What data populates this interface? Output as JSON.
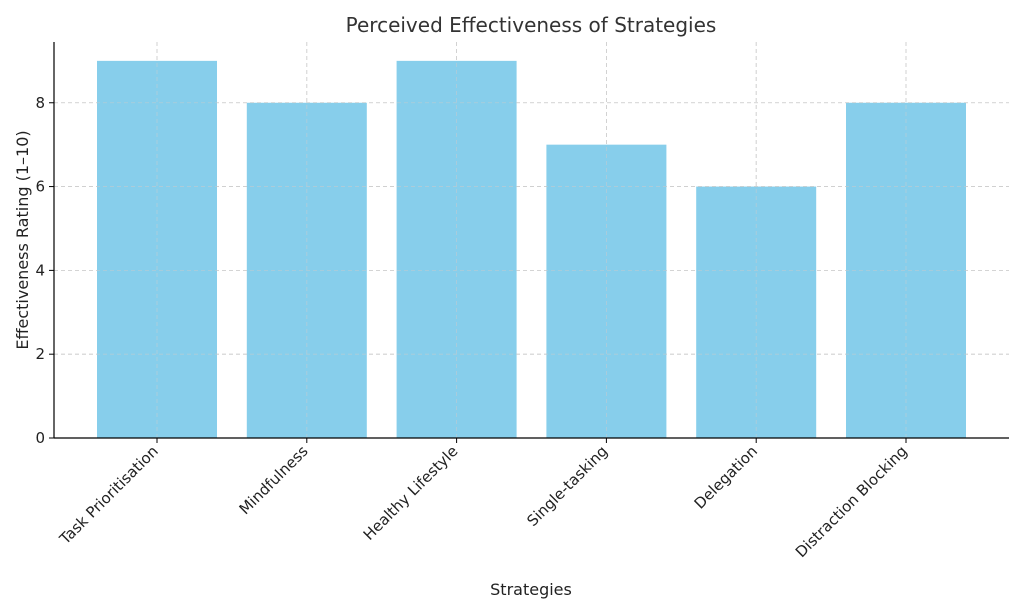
{
  "chart_data": {
    "type": "bar",
    "title": "Perceived Effectiveness of Strategies",
    "xlabel": "Strategies",
    "ylabel": "Effectiveness Rating (1–10)",
    "categories": [
      "Task Prioritisation",
      "Mindfulness",
      "Healthy Lifestyle",
      "Single-tasking",
      "Delegation",
      "Distraction Blocking"
    ],
    "values": [
      9,
      8,
      9,
      7,
      6,
      8
    ],
    "ylim": [
      0,
      9.45
    ],
    "yticks": [
      0,
      2,
      4,
      6,
      8
    ],
    "grid": true,
    "bar_color": "#87CEEB"
  }
}
